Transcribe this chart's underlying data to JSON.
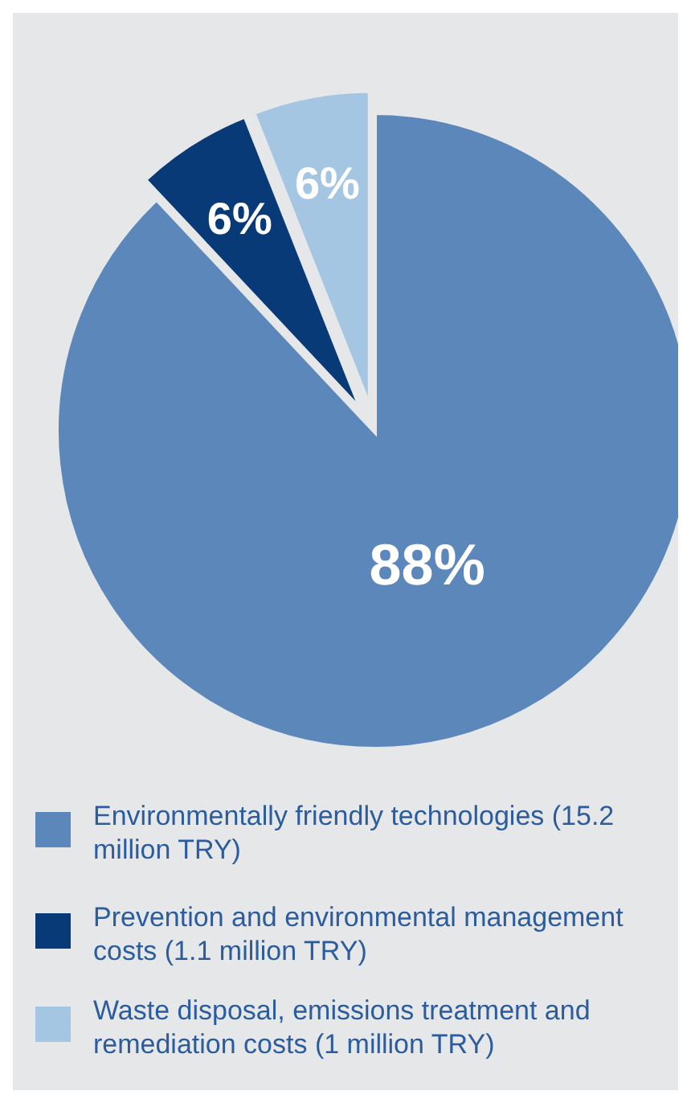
{
  "chart_data": {
    "type": "pie",
    "categories": [
      "Environmentally friendly technologies (15.2 million TRY)",
      "Prevention and environmental management costs (1.1 million TRY)",
      "Waste disposal, emissions treatment and remediation costs (1 million TRY)"
    ],
    "values": [
      88,
      6,
      6
    ],
    "colors": [
      "#5b87ba",
      "#073a76",
      "#a5c6e3"
    ],
    "value_labels": [
      "88%",
      "6%",
      "6%"
    ],
    "legend": "bottom"
  }
}
